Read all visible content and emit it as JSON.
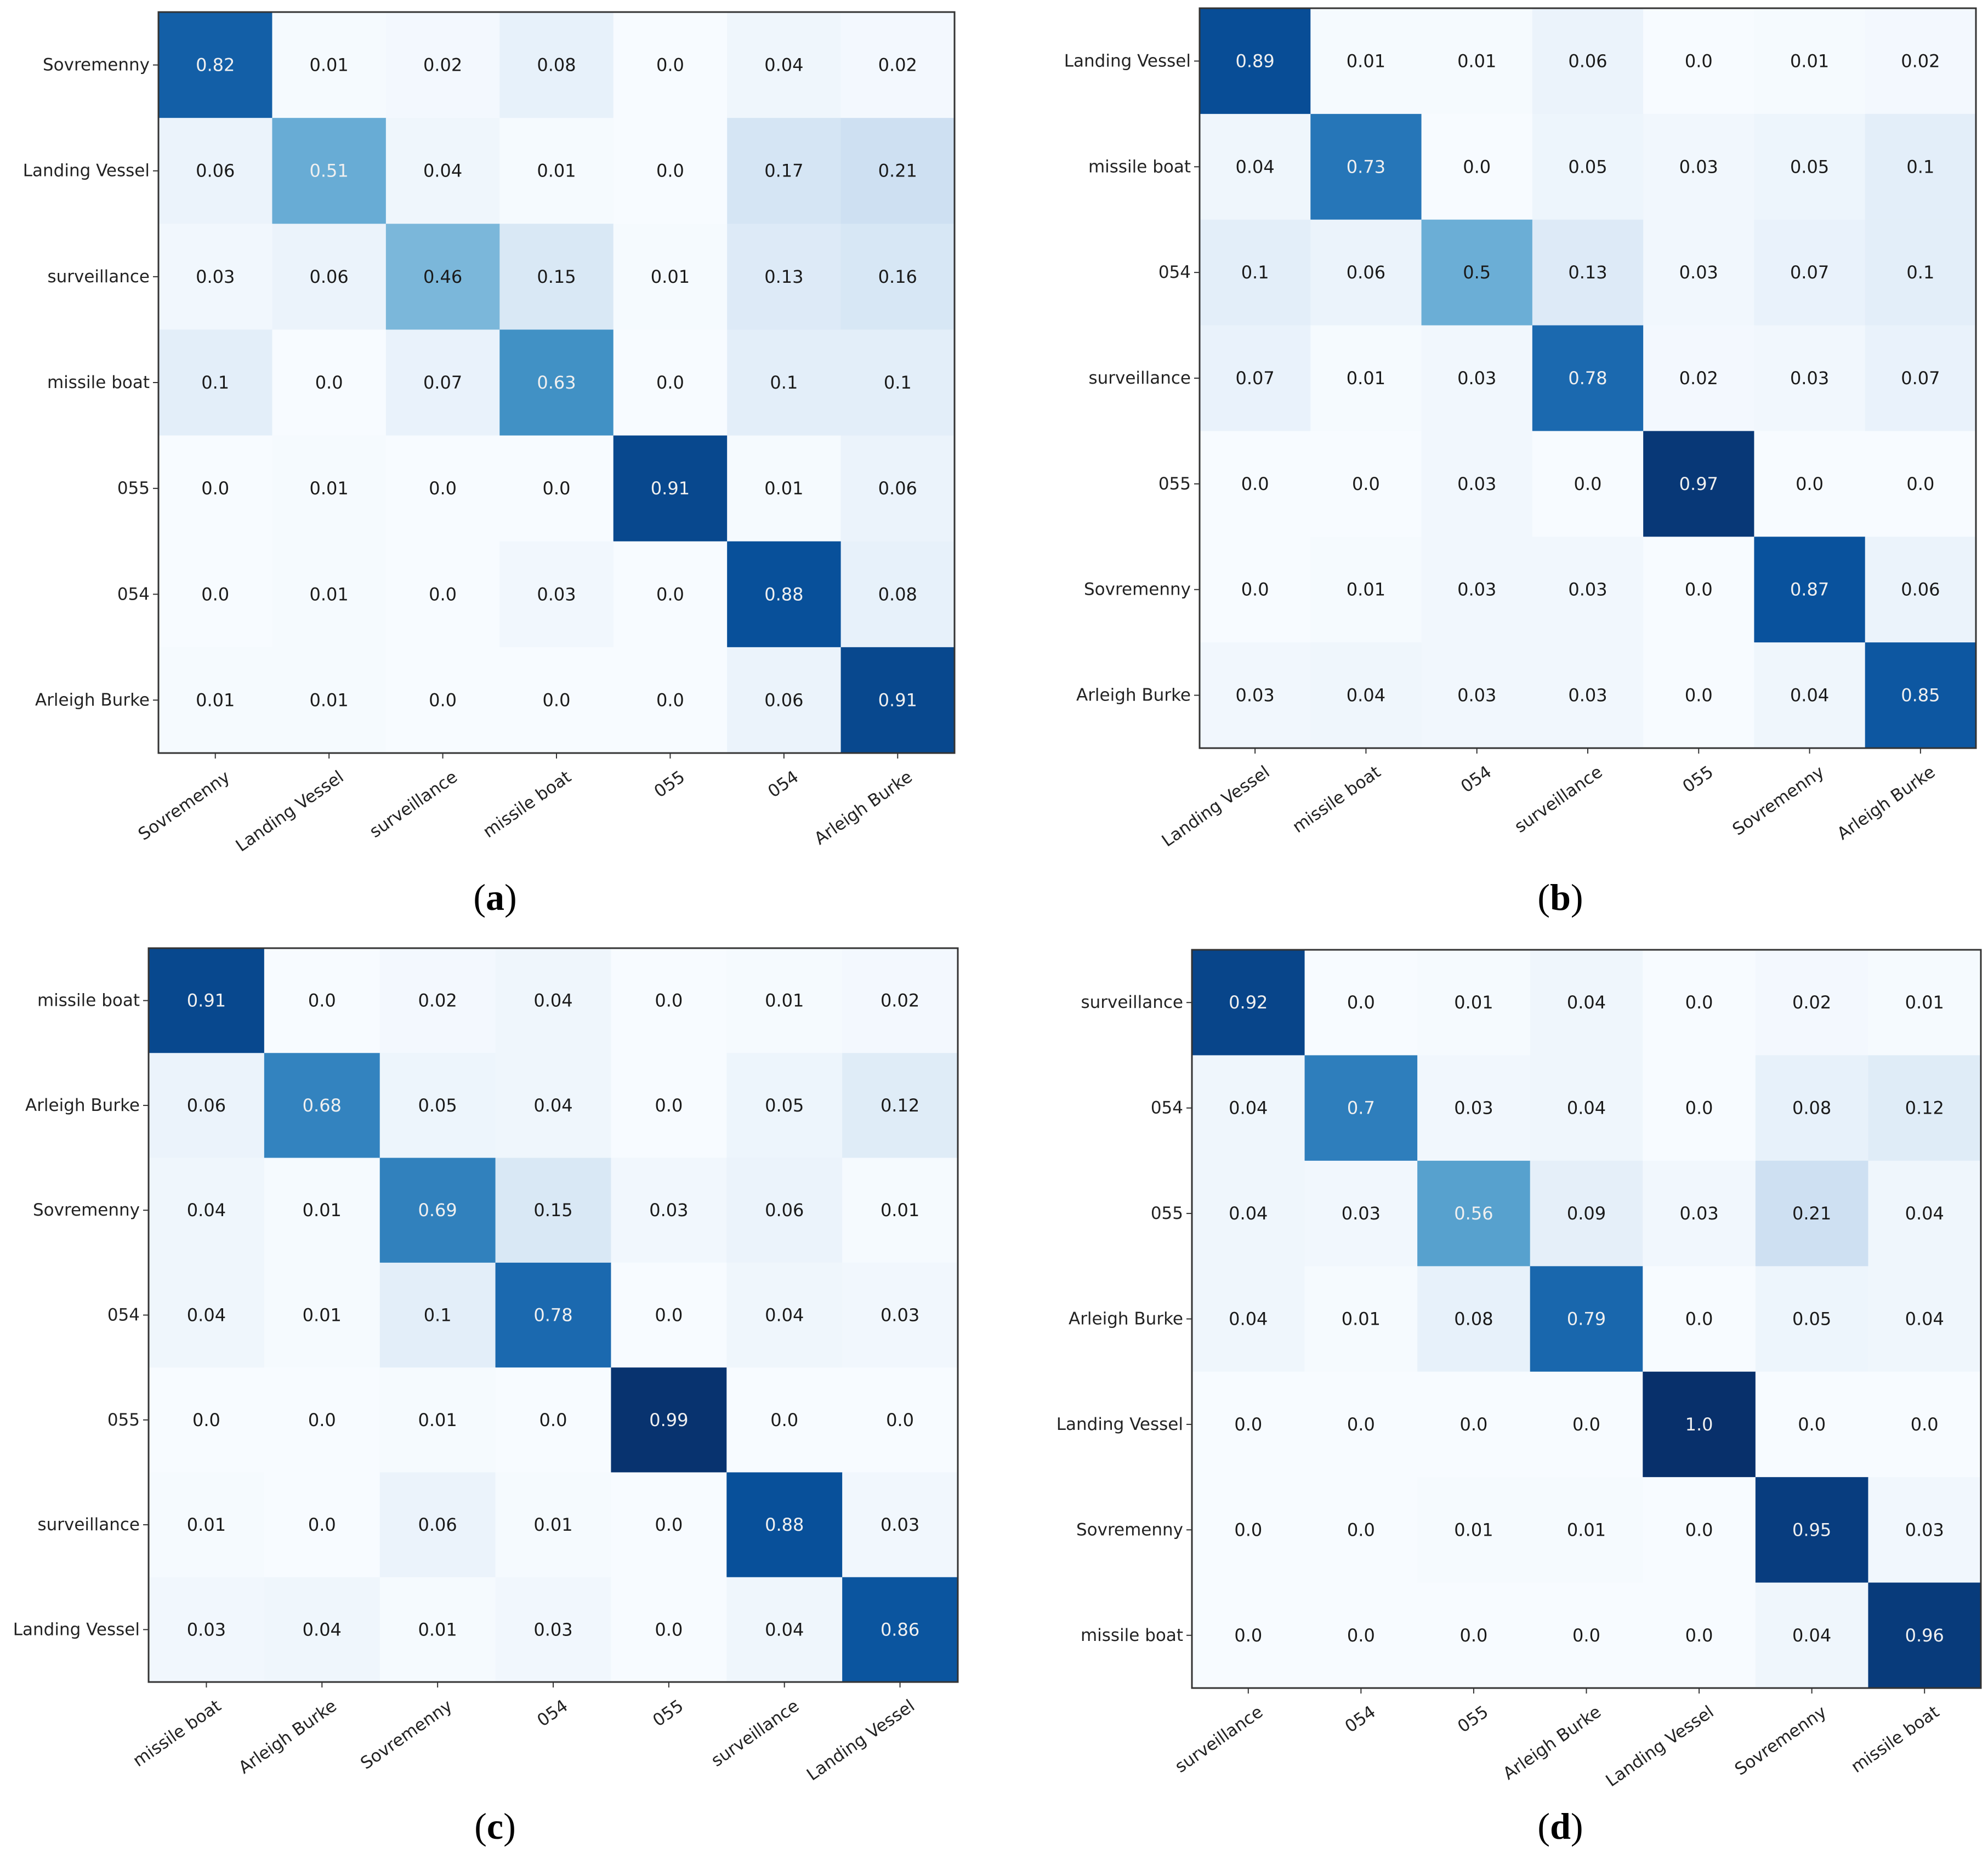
{
  "colormap": {
    "name": "Blues",
    "stops": [
      "#f7fbff",
      "#deebf7",
      "#c6dbef",
      "#9ecae1",
      "#6baed6",
      "#4292c6",
      "#2171b5",
      "#08519c",
      "#08306b"
    ]
  },
  "text_color_light": "#f0f0f0",
  "text_color_dark": "#1a1a1a",
  "chart_data": [
    {
      "type": "heatmap",
      "panel_label": "a",
      "row_labels": [
        "Sovremenny",
        "Landing Vessel",
        "surveillance",
        "missile boat",
        "055",
        "054",
        "Arleigh Burke"
      ],
      "col_labels": [
        "Sovremenny",
        "Landing Vessel",
        "surveillance",
        "missile boat",
        "055",
        "054",
        "Arleigh Burke"
      ],
      "values": [
        [
          "0.82",
          "0.01",
          "0.02",
          "0.08",
          "0.0",
          "0.04",
          "0.02"
        ],
        [
          "0.06",
          "0.51",
          "0.04",
          "0.01",
          "0.0",
          "0.17",
          "0.21"
        ],
        [
          "0.03",
          "0.06",
          "0.46",
          "0.15",
          "0.01",
          "0.13",
          "0.16"
        ],
        [
          "0.1",
          "0.0",
          "0.07",
          "0.63",
          "0.0",
          "0.1",
          "0.1"
        ],
        [
          "0.0",
          "0.01",
          "0.0",
          "0.0",
          "0.91",
          "0.01",
          "0.06"
        ],
        [
          "0.0",
          "0.01",
          "0.0",
          "0.03",
          "0.0",
          "0.88",
          "0.08"
        ],
        [
          "0.01",
          "0.01",
          "0.0",
          "0.0",
          "0.0",
          "0.06",
          "0.91"
        ]
      ]
    },
    {
      "type": "heatmap",
      "panel_label": "b",
      "row_labels": [
        "Landing Vessel",
        "missile boat",
        "054",
        "surveillance",
        "055",
        "Sovremenny",
        "Arleigh Burke"
      ],
      "col_labels": [
        "Landing Vessel",
        "missile boat",
        "054",
        "surveillance",
        "055",
        "Sovremenny",
        "Arleigh Burke"
      ],
      "values": [
        [
          "0.89",
          "0.01",
          "0.01",
          "0.06",
          "0.0",
          "0.01",
          "0.02"
        ],
        [
          "0.04",
          "0.73",
          "0.0",
          "0.05",
          "0.03",
          "0.05",
          "0.1"
        ],
        [
          "0.1",
          "0.06",
          "0.5",
          "0.13",
          "0.03",
          "0.07",
          "0.1"
        ],
        [
          "0.07",
          "0.01",
          "0.03",
          "0.78",
          "0.02",
          "0.03",
          "0.07"
        ],
        [
          "0.0",
          "0.0",
          "0.03",
          "0.0",
          "0.97",
          "0.0",
          "0.0"
        ],
        [
          "0.0",
          "0.01",
          "0.03",
          "0.03",
          "0.0",
          "0.87",
          "0.06"
        ],
        [
          "0.03",
          "0.04",
          "0.03",
          "0.03",
          "0.0",
          "0.04",
          "0.85"
        ]
      ]
    },
    {
      "type": "heatmap",
      "panel_label": "c",
      "row_labels": [
        "missile boat",
        "Arleigh Burke",
        "Sovremenny",
        "054",
        "055",
        "surveillance",
        "Landing Vessel"
      ],
      "col_labels": [
        "missile boat",
        "Arleigh Burke",
        "Sovremenny",
        "054",
        "055",
        "surveillance",
        "Landing Vessel"
      ],
      "values": [
        [
          "0.91",
          "0.0",
          "0.02",
          "0.04",
          "0.0",
          "0.01",
          "0.02"
        ],
        [
          "0.06",
          "0.68",
          "0.05",
          "0.04",
          "0.0",
          "0.05",
          "0.12"
        ],
        [
          "0.04",
          "0.01",
          "0.69",
          "0.15",
          "0.03",
          "0.06",
          "0.01"
        ],
        [
          "0.04",
          "0.01",
          "0.1",
          "0.78",
          "0.0",
          "0.04",
          "0.03"
        ],
        [
          "0.0",
          "0.0",
          "0.01",
          "0.0",
          "0.99",
          "0.0",
          "0.0"
        ],
        [
          "0.01",
          "0.0",
          "0.06",
          "0.01",
          "0.0",
          "0.88",
          "0.03"
        ],
        [
          "0.03",
          "0.04",
          "0.01",
          "0.03",
          "0.0",
          "0.04",
          "0.86"
        ]
      ]
    },
    {
      "type": "heatmap",
      "panel_label": "d",
      "row_labels": [
        "surveillance",
        "054",
        "055",
        "Arleigh Burke",
        "Landing Vessel",
        "Sovremenny",
        "missile boat"
      ],
      "col_labels": [
        "surveillance",
        "054",
        "055",
        "Arleigh Burke",
        "Landing Vessel",
        "Sovremenny",
        "missile boat"
      ],
      "values": [
        [
          "0.92",
          "0.0",
          "0.01",
          "0.04",
          "0.0",
          "0.02",
          "0.01"
        ],
        [
          "0.04",
          "0.7",
          "0.03",
          "0.04",
          "0.0",
          "0.08",
          "0.12"
        ],
        [
          "0.04",
          "0.03",
          "0.56",
          "0.09",
          "0.03",
          "0.21",
          "0.04"
        ],
        [
          "0.04",
          "0.01",
          "0.08",
          "0.79",
          "0.0",
          "0.05",
          "0.04"
        ],
        [
          "0.0",
          "0.0",
          "0.0",
          "0.0",
          "1.0",
          "0.0",
          "0.0"
        ],
        [
          "0.0",
          "0.0",
          "0.01",
          "0.01",
          "0.0",
          "0.95",
          "0.03"
        ],
        [
          "0.0",
          "0.0",
          "0.0",
          "0.0",
          "0.0",
          "0.04",
          "0.96"
        ]
      ]
    }
  ]
}
